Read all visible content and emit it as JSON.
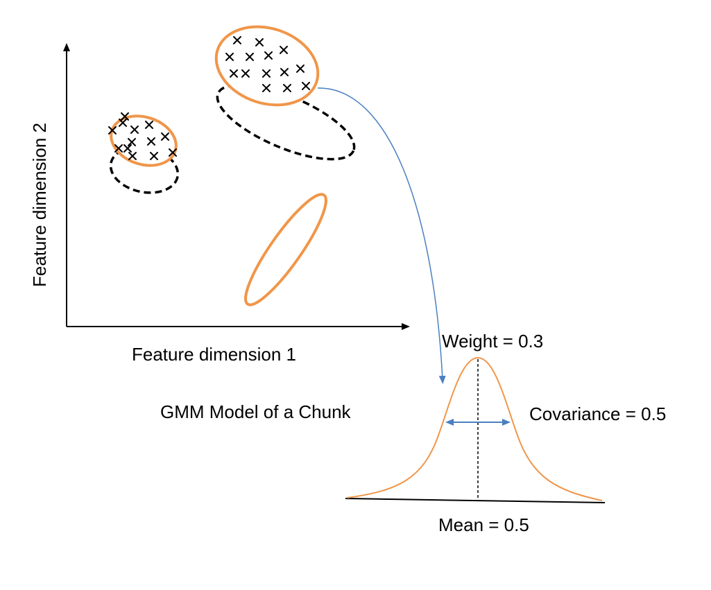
{
  "axes": {
    "x_label": "Feature dimension 1",
    "y_label": "Feature dimension 2"
  },
  "caption": "GMM Model of a Chunk",
  "gaussian": {
    "weight_label": "Weight = 0.3",
    "covariance_label": "Covariance = 0.5",
    "mean_label": "Mean = 0.5"
  },
  "colors": {
    "cluster_outline": "#f0964a",
    "dashed_outline": "#000000",
    "link_arrow": "#4a7fc0",
    "axis": "#000000"
  },
  "icons": {
    "data_point": "cross-marker"
  }
}
